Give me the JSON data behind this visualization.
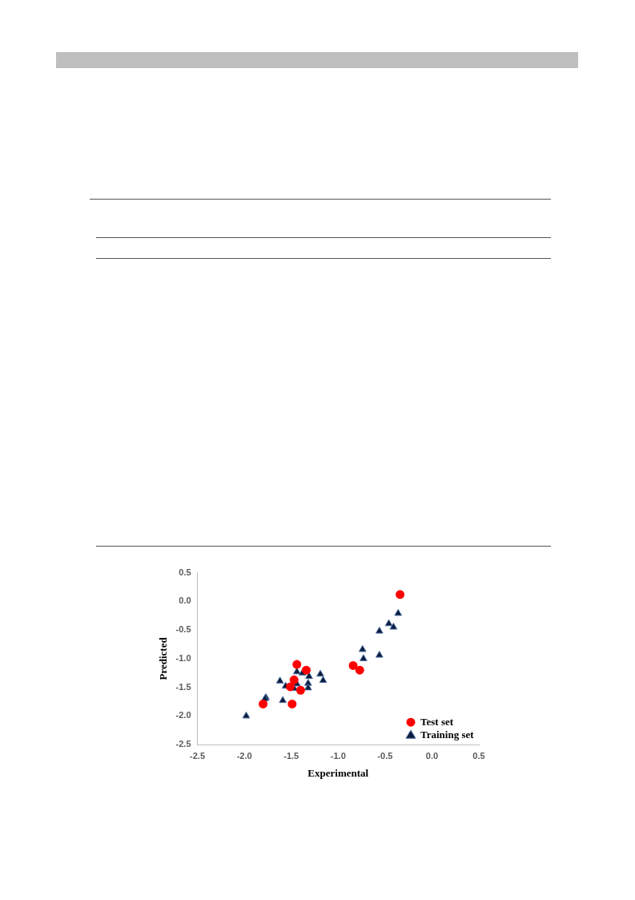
{
  "chart_data": {
    "type": "scatter",
    "xlabel": "Experimental",
    "ylabel": "Predicted",
    "xlim": [
      -2.5,
      0.5
    ],
    "xticks": [
      {
        "value": -2.5,
        "label": "-2.5"
      },
      {
        "value": -2,
        "label": "-2.0"
      },
      {
        "value": -1.5,
        "label": "-1.5"
      },
      {
        "value": -1,
        "label": "-1.0"
      },
      {
        "value": -0.5,
        "label": "-0.5"
      },
      {
        "value": 0,
        "label": "0.0"
      },
      {
        "value": 0.5,
        "label": "0.5"
      }
    ],
    "ylim": [
      -2.5,
      0.5
    ],
    "yticks": [
      {
        "value": -2.5,
        "label": "-2.5"
      },
      {
        "value": -2,
        "label": "-2.0"
      },
      {
        "value": -1.5,
        "label": "-1.5"
      },
      {
        "value": -1,
        "label": "-1.0"
      },
      {
        "value": -0.5,
        "label": "-0.5"
      },
      {
        "value": 0,
        "label": "0.0"
      },
      {
        "value": 0.5,
        "label": "0.5"
      }
    ],
    "grid": false,
    "legend": "bottom right",
    "series": [
      {
        "name": "Test set",
        "color": "#ff0000",
        "marker": "circle",
        "x": [
          -0.34,
          -1.44,
          -1.34,
          -1.47,
          -1.51,
          -1.4,
          -1.49,
          -1.8,
          -0.84,
          -0.77
        ],
        "values": [
          0.12,
          -1.1,
          -1.2,
          -1.37,
          -1.49,
          -1.55,
          -1.79,
          -1.79,
          -1.12,
          -1.2
        ]
      },
      {
        "name": "Training set",
        "color": "#0d1b3a",
        "marker": "triangle",
        "x": [
          -1.98,
          -1.77,
          -1.78,
          -1.59,
          -1.62,
          -1.56,
          -1.44,
          -1.44,
          -1.47,
          -1.38,
          -1.31,
          -1.32,
          -1.32,
          -1.19,
          -1.16,
          -0.74,
          -0.73,
          -0.56,
          -0.56,
          -0.46,
          -0.41,
          -0.36
        ],
        "values": [
          -2,
          -1.68,
          -1.7,
          -1.73,
          -1.39,
          -1.48,
          -1.23,
          -1.44,
          -1.52,
          -1.25,
          -1.31,
          -1.43,
          -1.51,
          -1.27,
          -1.38,
          -0.84,
          -1,
          -0.52,
          -0.94,
          -0.39,
          -0.45,
          -0.21
        ]
      }
    ]
  }
}
